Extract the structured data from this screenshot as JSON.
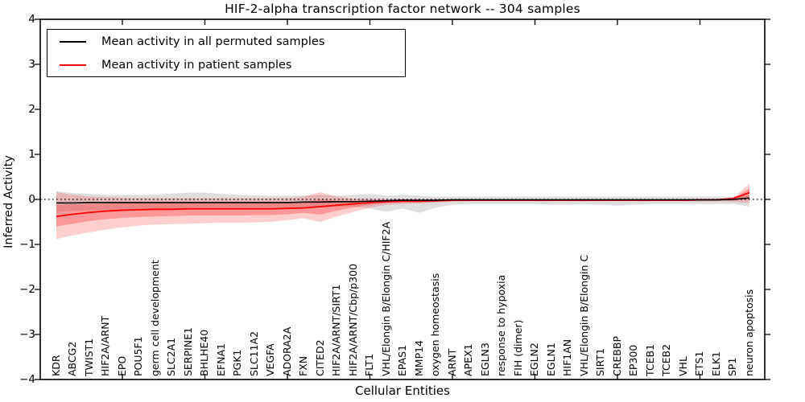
{
  "title": "HIF-2-alpha transcription factor network -- 304 samples",
  "chart_data": {
    "type": "line",
    "title": "HIF-2-alpha transcription factor network -- 304 samples",
    "xlabel": "Cellular Entities",
    "ylabel": "Inferred Activity",
    "ylim": [
      -4,
      4
    ],
    "grid": false,
    "legend_position": "upper left",
    "ytick_values": [
      4,
      3,
      2,
      1,
      0,
      -1,
      -2,
      -3,
      -4
    ],
    "ytick_labels": [
      "4",
      "3",
      "2",
      "1",
      "0",
      "−1",
      "−2",
      "−3",
      "−4"
    ],
    "xtick_step": 5,
    "zero_line": true,
    "categories": [
      "KDR",
      "ABCG2",
      "TWIST1",
      "HIF2A/ARNT",
      "EPO",
      "POU5F1",
      "germ cell development",
      "SLC2A1",
      "SERPINE1",
      "BHLHE40",
      "EFNA1",
      "PGK1",
      "SLC11A2",
      "VEGFA",
      "ADORA2A",
      "FXN",
      "CITED2",
      "HIF2A/ARNT/SIRT1",
      "HIF2A/ARNT/Cbp/p300",
      "FLT1",
      "VHL/Elongin B/Elongin C/HIF2A",
      "EPAS1",
      "MMP14",
      "oxygen homeostasis",
      "ARNT",
      "APEX1",
      "EGLN3",
      "response to hypoxia",
      "FIH (dimer)",
      "EGLN2",
      "EGLN1",
      "HIF1AN",
      "VHL/Elongin B/Elongin C",
      "SIRT1",
      "CREBBP",
      "EP300",
      "TCEB1",
      "TCEB2",
      "VHL",
      "ETS1",
      "ELK1",
      "SP1",
      "neuron apoptosis"
    ],
    "colors": {
      "permuted_line": "#000000",
      "patient_line": "#ff0000",
      "permuted_band": "rgba(90,90,90,0.20)",
      "patient_band_outer": "rgba(255,30,30,0.22)",
      "patient_band_inner": "rgba(255,30,30,0.30)"
    },
    "series": [
      {
        "name": "Mean activity in all permuted samples",
        "color": "#000000",
        "values": [
          -0.08,
          -0.08,
          -0.07,
          -0.07,
          -0.07,
          -0.07,
          -0.07,
          -0.07,
          -0.07,
          -0.07,
          -0.07,
          -0.07,
          -0.07,
          -0.07,
          -0.07,
          -0.06,
          -0.06,
          -0.05,
          -0.05,
          -0.04,
          -0.03,
          -0.02,
          -0.02,
          -0.02,
          -0.01,
          -0.01,
          -0.01,
          -0.01,
          -0.01,
          -0.01,
          -0.01,
          -0.01,
          -0.01,
          -0.01,
          -0.01,
          -0.01,
          -0.01,
          -0.01,
          -0.01,
          -0.01,
          -0.01,
          0.0,
          0.03
        ],
        "band_hi": [
          0.18,
          0.14,
          0.12,
          0.1,
          0.1,
          0.1,
          0.11,
          0.13,
          0.15,
          0.15,
          0.12,
          0.1,
          0.09,
          0.08,
          0.08,
          0.09,
          0.1,
          0.08,
          0.1,
          0.12,
          0.08,
          0.1,
          0.08,
          0.06,
          0.06,
          0.06,
          0.06,
          0.06,
          0.06,
          0.06,
          0.06,
          0.06,
          0.06,
          0.06,
          0.06,
          0.06,
          0.06,
          0.06,
          0.06,
          0.06,
          0.06,
          0.06,
          0.08
        ],
        "band_lo": [
          -0.28,
          -0.26,
          -0.24,
          -0.23,
          -0.22,
          -0.22,
          -0.22,
          -0.22,
          -0.22,
          -0.22,
          -0.22,
          -0.22,
          -0.22,
          -0.22,
          -0.2,
          -0.18,
          -0.18,
          -0.16,
          -0.16,
          -0.2,
          -0.28,
          -0.2,
          -0.3,
          -0.18,
          -0.12,
          -0.1,
          -0.1,
          -0.1,
          -0.1,
          -0.1,
          -0.12,
          -0.12,
          -0.1,
          -0.12,
          -0.14,
          -0.12,
          -0.1,
          -0.1,
          -0.1,
          -0.1,
          -0.1,
          -0.1,
          -0.16
        ]
      },
      {
        "name": "Mean activity in patient samples",
        "color": "#ff0000",
        "values": [
          -0.38,
          -0.33,
          -0.29,
          -0.26,
          -0.24,
          -0.23,
          -0.22,
          -0.22,
          -0.21,
          -0.21,
          -0.21,
          -0.21,
          -0.21,
          -0.21,
          -0.2,
          -0.19,
          -0.16,
          -0.13,
          -0.1,
          -0.07,
          -0.05,
          -0.04,
          -0.04,
          -0.03,
          -0.02,
          -0.02,
          -0.02,
          -0.02,
          -0.02,
          -0.02,
          -0.02,
          -0.02,
          -0.02,
          -0.02,
          -0.02,
          -0.02,
          -0.02,
          -0.02,
          -0.02,
          -0.01,
          -0.01,
          0.02,
          0.15
        ],
        "band_hi": [
          0.16,
          0.1,
          0.06,
          0.05,
          0.04,
          0.03,
          0.03,
          0.03,
          0.03,
          0.03,
          0.03,
          0.03,
          0.03,
          0.03,
          0.03,
          0.06,
          0.16,
          0.06,
          0.02,
          0.02,
          0.01,
          0.01,
          0.01,
          0.01,
          0.01,
          0.01,
          0.01,
          0.01,
          0.01,
          0.01,
          0.01,
          0.01,
          0.01,
          0.01,
          0.01,
          0.01,
          0.01,
          0.01,
          0.01,
          0.01,
          0.01,
          0.03,
          0.35
        ],
        "band_lo": [
          -0.88,
          -0.8,
          -0.73,
          -0.67,
          -0.62,
          -0.58,
          -0.56,
          -0.55,
          -0.54,
          -0.53,
          -0.52,
          -0.52,
          -0.51,
          -0.5,
          -0.46,
          -0.42,
          -0.5,
          -0.38,
          -0.28,
          -0.18,
          -0.12,
          -0.1,
          -0.09,
          -0.07,
          -0.05,
          -0.04,
          -0.04,
          -0.04,
          -0.04,
          -0.04,
          -0.04,
          -0.04,
          -0.04,
          -0.04,
          -0.04,
          -0.04,
          -0.04,
          -0.04,
          -0.04,
          -0.04,
          -0.04,
          -0.05,
          -0.08
        ],
        "inner_hi": [
          -0.12,
          -0.11,
          -0.1,
          -0.09,
          -0.08,
          -0.08,
          -0.07,
          -0.07,
          -0.07,
          -0.07,
          -0.07,
          -0.07,
          -0.07,
          -0.07,
          -0.06,
          -0.05,
          0.0,
          -0.03,
          -0.03,
          -0.02,
          -0.01,
          0.0,
          0.0,
          0.0,
          0.0,
          0.0,
          0.0,
          0.0,
          0.0,
          0.0,
          0.0,
          0.0,
          0.0,
          0.0,
          0.0,
          0.0,
          0.0,
          0.0,
          0.0,
          0.0,
          0.0,
          0.01,
          0.25
        ],
        "inner_lo": [
          -0.6,
          -0.54,
          -0.48,
          -0.44,
          -0.41,
          -0.39,
          -0.38,
          -0.37,
          -0.36,
          -0.36,
          -0.36,
          -0.36,
          -0.35,
          -0.35,
          -0.33,
          -0.3,
          -0.34,
          -0.25,
          -0.18,
          -0.12,
          -0.08,
          -0.07,
          -0.07,
          -0.05,
          -0.04,
          -0.03,
          -0.03,
          -0.03,
          -0.03,
          -0.03,
          -0.03,
          -0.03,
          -0.03,
          -0.03,
          -0.03,
          -0.03,
          -0.03,
          -0.03,
          -0.03,
          -0.03,
          -0.03,
          -0.03,
          0.04
        ]
      }
    ]
  }
}
